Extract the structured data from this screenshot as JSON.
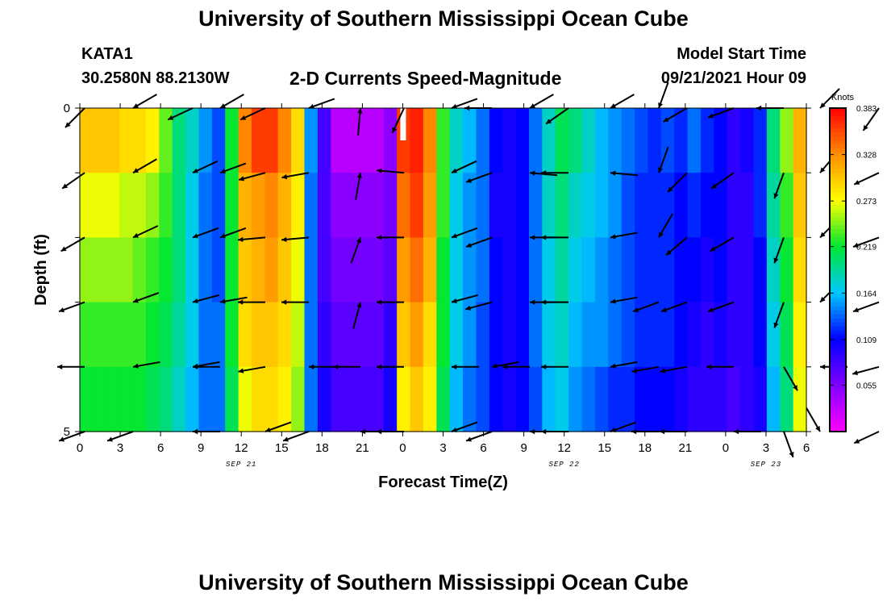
{
  "header": {
    "title": "University of Southern Mississippi Ocean Cube",
    "station_id": "KATA1",
    "station_coords": "30.2580N  88.2130W",
    "subtitle": "2-D Currents Speed-Magnitude",
    "model_label": "Model Start Time",
    "model_time": "09/21/2021 Hour 09"
  },
  "footer": {
    "title": "University of Southern Mississippi Ocean Cube"
  },
  "chart_data": {
    "type": "heatmap",
    "xlabel": "Forecast Time(Z)",
    "ylabel": "Depth (ft)",
    "ylim": [
      0,
      5
    ],
    "xlim": [
      0,
      54
    ],
    "x_tick_labels": [
      "0",
      "3",
      "6",
      "9",
      "12",
      "15",
      "18",
      "21",
      "0",
      "3",
      "6",
      "9",
      "12",
      "15",
      "18",
      "21",
      "0",
      "3",
      "6"
    ],
    "y_tick_labels": [
      "0",
      "5"
    ],
    "date_labels": [
      {
        "text": "SEP 21",
        "x": 12
      },
      {
        "text": "SEP 22",
        "x": 36
      },
      {
        "text": "SEP 23",
        "x": 51
      }
    ],
    "colorbar": {
      "unit_label": "Knots",
      "ticks": [
        "0.383",
        "0.328",
        "0.273",
        "0.219",
        "0.164",
        "0.109",
        "0.055"
      ],
      "tick_values": [
        0.383,
        0.328,
        0.273,
        0.219,
        0.164,
        0.109,
        0.055
      ],
      "range": [
        0,
        0.383
      ],
      "stops": [
        "#ff00ff",
        "#8000ff",
        "#0000ff",
        "#00c8ff",
        "#00e632",
        "#ffff00",
        "#ff8c00",
        "#ff0000"
      ]
    },
    "gap_marker_hour": 24,
    "depth_rows": 5,
    "hours": [
      0,
      1,
      2,
      3,
      4,
      5,
      6,
      7,
      8,
      9,
      10,
      11,
      12,
      13,
      14,
      15,
      16,
      17,
      18,
      19,
      20,
      21,
      22,
      23,
      24,
      25,
      26,
      27,
      28,
      29,
      30,
      31,
      32,
      33,
      34,
      35,
      36,
      37,
      38,
      39,
      40,
      41,
      42,
      43,
      44,
      45,
      46,
      47,
      48,
      49,
      50,
      51,
      52,
      53,
      54
    ],
    "speed_knots": [
      [
        0.3,
        0.3,
        0.3,
        0.29,
        0.29,
        0.28,
        0.24,
        0.2,
        0.18,
        0.15,
        0.13,
        0.22,
        0.33,
        0.36,
        0.36,
        0.33,
        0.29,
        0.15,
        0.08,
        0.03,
        0.03,
        0.03,
        0.03,
        0.05,
        0.36,
        0.37,
        0.33,
        0.23,
        0.18,
        0.16,
        0.14,
        0.11,
        0.1,
        0.11,
        0.14,
        0.18,
        0.21,
        0.2,
        0.18,
        0.16,
        0.15,
        0.14,
        0.13,
        0.12,
        0.13,
        0.12,
        0.14,
        0.12,
        0.11,
        0.09,
        0.1,
        0.12,
        0.2,
        0.25,
        0.31
      ],
      [
        0.27,
        0.27,
        0.27,
        0.26,
        0.26,
        0.25,
        0.23,
        0.2,
        0.17,
        0.14,
        0.13,
        0.22,
        0.31,
        0.32,
        0.33,
        0.31,
        0.28,
        0.14,
        0.08,
        0.05,
        0.05,
        0.05,
        0.05,
        0.06,
        0.34,
        0.36,
        0.32,
        0.23,
        0.17,
        0.15,
        0.14,
        0.1,
        0.1,
        0.11,
        0.14,
        0.18,
        0.2,
        0.18,
        0.17,
        0.16,
        0.15,
        0.13,
        0.12,
        0.12,
        0.12,
        0.11,
        0.12,
        0.11,
        0.11,
        0.09,
        0.09,
        0.12,
        0.19,
        0.23,
        0.3
      ],
      [
        0.25,
        0.25,
        0.25,
        0.25,
        0.24,
        0.23,
        0.22,
        0.2,
        0.17,
        0.14,
        0.13,
        0.22,
        0.3,
        0.31,
        0.32,
        0.3,
        0.27,
        0.14,
        0.08,
        0.06,
        0.06,
        0.06,
        0.06,
        0.07,
        0.32,
        0.34,
        0.31,
        0.22,
        0.17,
        0.15,
        0.14,
        0.11,
        0.1,
        0.11,
        0.14,
        0.17,
        0.19,
        0.17,
        0.16,
        0.15,
        0.14,
        0.13,
        0.12,
        0.12,
        0.12,
        0.11,
        0.11,
        0.1,
        0.11,
        0.09,
        0.09,
        0.11,
        0.18,
        0.22,
        0.29
      ],
      [
        0.23,
        0.23,
        0.23,
        0.23,
        0.23,
        0.22,
        0.21,
        0.19,
        0.17,
        0.14,
        0.14,
        0.22,
        0.29,
        0.3,
        0.3,
        0.29,
        0.26,
        0.14,
        0.09,
        0.07,
        0.07,
        0.07,
        0.07,
        0.09,
        0.3,
        0.32,
        0.29,
        0.22,
        0.17,
        0.15,
        0.13,
        0.11,
        0.1,
        0.11,
        0.14,
        0.17,
        0.18,
        0.16,
        0.15,
        0.15,
        0.14,
        0.13,
        0.12,
        0.12,
        0.12,
        0.11,
        0.1,
        0.09,
        0.1,
        0.09,
        0.09,
        0.11,
        0.17,
        0.21,
        0.28
      ],
      [
        0.22,
        0.22,
        0.22,
        0.22,
        0.22,
        0.21,
        0.2,
        0.18,
        0.16,
        0.14,
        0.14,
        0.21,
        0.27,
        0.29,
        0.29,
        0.28,
        0.25,
        0.14,
        0.1,
        0.08,
        0.08,
        0.08,
        0.08,
        0.1,
        0.28,
        0.3,
        0.28,
        0.21,
        0.16,
        0.14,
        0.13,
        0.11,
        0.1,
        0.11,
        0.13,
        0.16,
        0.17,
        0.15,
        0.14,
        0.13,
        0.12,
        0.12,
        0.11,
        0.11,
        0.11,
        0.1,
        0.09,
        0.09,
        0.09,
        0.08,
        0.09,
        0.1,
        0.16,
        0.2,
        0.27
      ]
    ],
    "vectors": [
      [
        [
          "r",
          225
        ],
        [
          "l",
          210
        ],
        [
          "r",
          205
        ],
        [
          "c",
          210
        ],
        [
          "r",
          205
        ],
        [
          "l",
          200
        ],
        [
          "p",
          85
        ],
        [
          "r",
          245
        ],
        [
          "c",
          200
        ],
        [
          "r",
          180
        ],
        [
          "l",
          210
        ],
        [
          "r",
          215
        ],
        [
          "l",
          210
        ],
        [
          "n",
          250
        ],
        [
          "r",
          210
        ],
        [
          "r",
          200
        ],
        [
          "r",
          180
        ],
        [
          "l",
          225
        ],
        [
          "r",
          235
        ]
      ],
      [
        [
          "r",
          215
        ],
        [
          "l",
          210
        ],
        [
          "l",
          205
        ],
        [
          "l",
          200
        ],
        [
          "r",
          195
        ],
        [
          "r",
          190
        ],
        [
          "p",
          80
        ],
        [
          "r",
          175
        ],
        [
          "l",
          205
        ],
        [
          "r",
          200
        ],
        [
          "l",
          175
        ],
        [
          "r",
          180
        ],
        [
          "l",
          175
        ],
        [
          "n",
          250
        ],
        [
          "r",
          225
        ],
        [
          "r",
          215
        ],
        [
          "r",
          250
        ],
        [
          "l",
          230
        ],
        [
          "r",
          205
        ]
      ],
      [
        [
          "r",
          210
        ],
        [
          "l",
          205
        ],
        [
          "l",
          200
        ],
        [
          "l",
          200
        ],
        [
          "r",
          185
        ],
        [
          "r",
          185
        ],
        [
          "p",
          70
        ],
        [
          "r",
          180
        ],
        [
          "l",
          200
        ],
        [
          "r",
          200
        ],
        [
          "l",
          180
        ],
        [
          "r",
          180
        ],
        [
          "l",
          190
        ],
        [
          "n",
          240
        ],
        [
          "r",
          220
        ],
        [
          "r",
          210
        ],
        [
          "r",
          250
        ],
        [
          "l",
          225
        ],
        [
          "r",
          200
        ]
      ],
      [
        [
          "r",
          200
        ],
        [
          "l",
          200
        ],
        [
          "l",
          195
        ],
        [
          "l",
          190
        ],
        [
          "r",
          180
        ],
        [
          "r",
          180
        ],
        [
          "l",
          75
        ],
        [
          "r",
          180
        ],
        [
          "l",
          195
        ],
        [
          "r",
          195
        ],
        [
          "l",
          180
        ],
        [
          "r",
          180
        ],
        [
          "l",
          190
        ],
        [
          "r",
          200
        ],
        [
          "r",
          200
        ],
        [
          "r",
          200
        ],
        [
          "r",
          250
        ],
        [
          "l",
          225
        ],
        [
          "r",
          200
        ]
      ],
      [
        [
          "r",
          180
        ],
        [
          "l",
          190
        ],
        [
          "l",
          190
        ],
        [
          "r",
          180
        ],
        [
          "r",
          190
        ],
        [
          "l",
          180
        ],
        [
          "r",
          180
        ],
        [
          "r",
          180
        ],
        [
          "l",
          180
        ],
        [
          "l",
          190
        ],
        [
          "r",
          180
        ],
        [
          "r",
          180
        ],
        [
          "l",
          190
        ],
        [
          "r",
          190
        ],
        [
          "r",
          190
        ],
        [
          "r",
          180
        ],
        [
          "r",
          300
        ],
        [
          "l",
          180
        ],
        [
          "r",
          195
        ]
      ],
      [
        [
          "r",
          200
        ],
        [
          "r",
          200
        ],
        [
          "l",
          180
        ],
        [
          "r",
          180
        ],
        [
          "l",
          200
        ],
        [
          "r",
          200
        ],
        [
          "l",
          180
        ],
        [
          "r",
          180
        ],
        [
          "l",
          200
        ],
        [
          "r",
          200
        ],
        [
          "l",
          180
        ],
        [
          "r",
          180
        ],
        [
          "l",
          200
        ],
        [
          "r",
          180
        ],
        [
          "r",
          180
        ],
        [
          "l",
          180
        ],
        [
          "r",
          290
        ],
        [
          "l",
          300
        ],
        [
          "r",
          205
        ]
      ]
    ]
  }
}
